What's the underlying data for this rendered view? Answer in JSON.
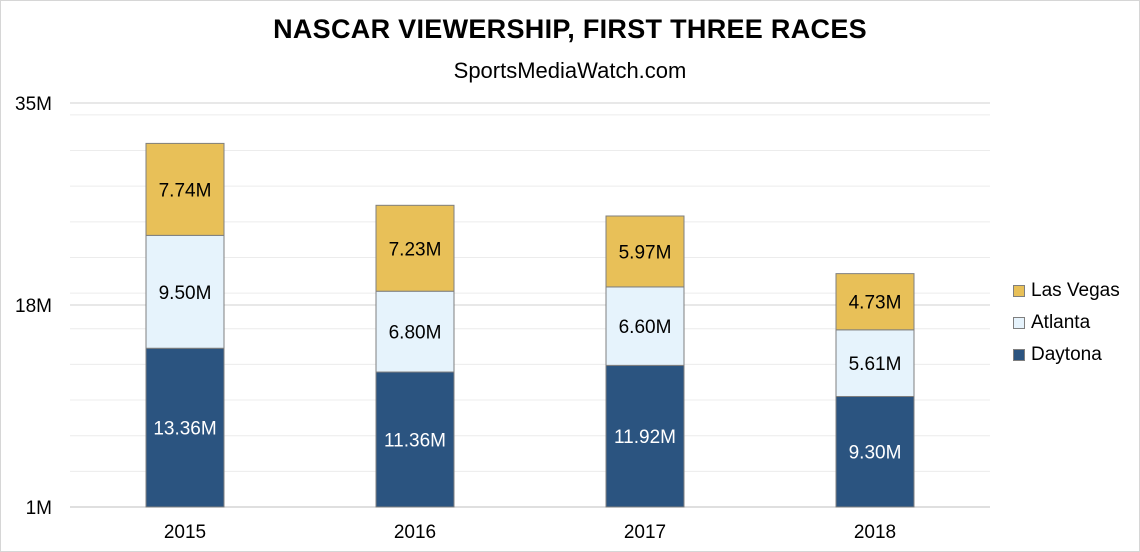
{
  "chart_data": {
    "type": "bar",
    "stacked": true,
    "title": "NASCAR VIEWERSHIP, FIRST THREE RACES",
    "subtitle": "SportsMediaWatch.com",
    "categories": [
      "2015",
      "2016",
      "2017",
      "2018"
    ],
    "series": [
      {
        "name": "Daytona",
        "values": [
          13.36,
          11.36,
          11.92,
          9.3
        ],
        "labels": [
          "13.36M",
          "11.36M",
          "11.92M",
          "9.30M"
        ],
        "color": "#2b5480",
        "label_color": "#ffffff"
      },
      {
        "name": "Atlanta",
        "values": [
          9.5,
          6.8,
          6.6,
          5.61
        ],
        "labels": [
          "9.50M",
          "6.80M",
          "6.60M",
          "5.61M"
        ],
        "color": "#e6f3fc",
        "label_color": "#000000"
      },
      {
        "name": "Las Vegas",
        "values": [
          7.74,
          7.23,
          5.97,
          4.73
        ],
        "labels": [
          "7.74M",
          "7.23M",
          "5.97M",
          "4.73M"
        ],
        "color": "#e8c058",
        "label_color": "#000000"
      }
    ],
    "yticks": [
      {
        "value": 1,
        "label": "1M"
      },
      {
        "value": 18,
        "label": "18M"
      },
      {
        "value": 35,
        "label": "35M"
      }
    ],
    "ylim": [
      1,
      35
    ],
    "grid": true,
    "legend_position": "right",
    "legend_order": [
      "Las Vegas",
      "Atlanta",
      "Daytona"
    ]
  }
}
